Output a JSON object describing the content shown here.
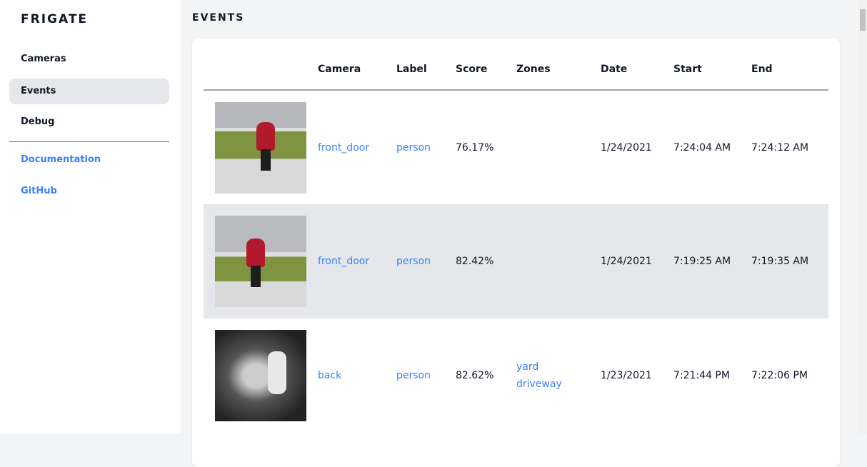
{
  "sidebar": {
    "brand": "FRIGATE",
    "items": [
      {
        "label": "Cameras"
      },
      {
        "label": "Events"
      },
      {
        "label": "Debug"
      }
    ],
    "links": [
      {
        "label": "Documentation"
      },
      {
        "label": "GitHub"
      }
    ]
  },
  "main": {
    "title": "EVENTS"
  },
  "table": {
    "headers": [
      "",
      "Camera",
      "Label",
      "Score",
      "Zones",
      "Date",
      "Start",
      "End"
    ],
    "rows": [
      {
        "camera": "front_door",
        "label": "person",
        "score": "76.17%",
        "zones": [
          "",
          ""
        ],
        "date": "1/24/2021",
        "start": "7:24:04 AM",
        "end": "7:24:12 AM"
      },
      {
        "camera": "front_door",
        "label": "person",
        "score": "82.42%",
        "zones": [
          "",
          ""
        ],
        "date": "1/24/2021",
        "start": "7:19:25 AM",
        "end": "7:19:35 AM"
      },
      {
        "camera": "back",
        "label": "person",
        "score": "82.62%",
        "zones": [
          "yard",
          "driveway"
        ],
        "date": "1/23/2021",
        "start": "7:21:44 PM",
        "end": "7:22:06 PM"
      }
    ]
  },
  "colors": {
    "accent": "#3b82f6",
    "active_bg": "#e5e7eb"
  }
}
